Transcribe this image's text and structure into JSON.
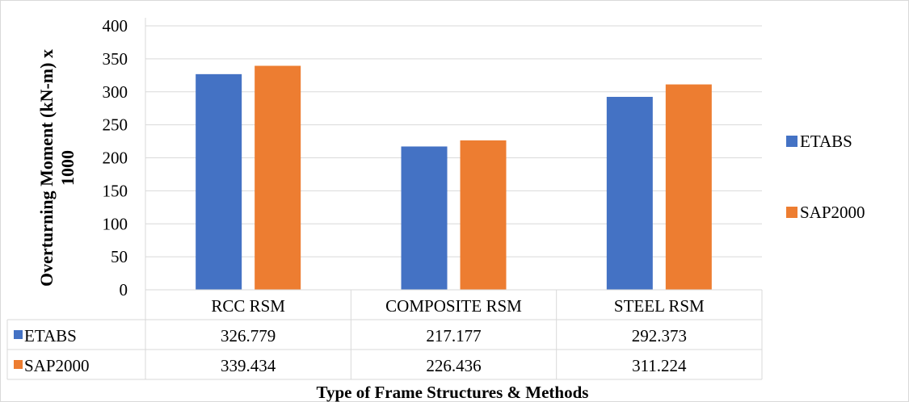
{
  "chart_data": {
    "type": "bar",
    "categories": [
      "RCC RSM",
      "COMPOSITE RSM",
      "STEEL RSM"
    ],
    "series": [
      {
        "name": "ETABS",
        "values": [
          326.779,
          217.177,
          292.373
        ],
        "labels": [
          "326.779",
          "217.177",
          "292.373"
        ],
        "color": "#4472C4"
      },
      {
        "name": "SAP2000",
        "values": [
          339.434,
          226.436,
          311.224
        ],
        "labels": [
          "339.434",
          "226.436",
          "311.224"
        ],
        "color": "#ED7D31"
      }
    ],
    "xlabel": "Type of Frame Structures & Methods",
    "ylabel_lines": [
      "Overturning Moment (kN-m) x",
      "1000"
    ],
    "ylim": [
      0,
      400
    ],
    "yticks": [
      0,
      50,
      100,
      150,
      200,
      250,
      300,
      350,
      400
    ],
    "grid": true,
    "legend_position": "right",
    "data_table": true
  }
}
